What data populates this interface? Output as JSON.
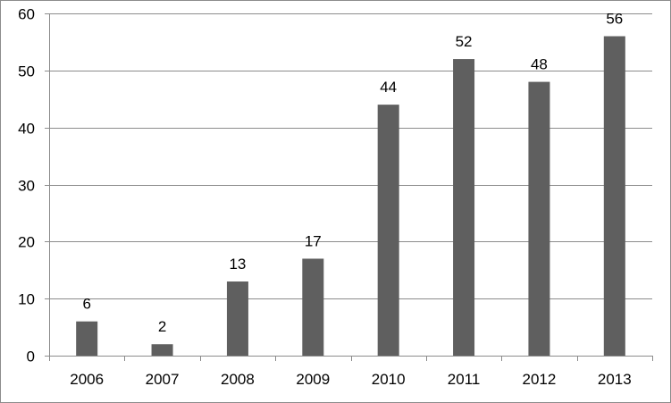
{
  "chart_data": {
    "type": "bar",
    "categories": [
      "2006",
      "2007",
      "2008",
      "2009",
      "2010",
      "2011",
      "2012",
      "2013"
    ],
    "values": [
      6,
      2,
      13,
      17,
      44,
      52,
      48,
      56
    ],
    "data_labels": [
      "6",
      "2",
      "13",
      "17",
      "44",
      "52",
      "48",
      "56"
    ],
    "y_ticks": [
      "0",
      "10",
      "20",
      "30",
      "40",
      "50",
      "60"
    ],
    "ylim": [
      0,
      60
    ],
    "y_tick_step": 10,
    "grid": "horizontal",
    "legend": "none",
    "bar_color": "#5f5f5f",
    "grid_color": "#8c8c8c"
  }
}
